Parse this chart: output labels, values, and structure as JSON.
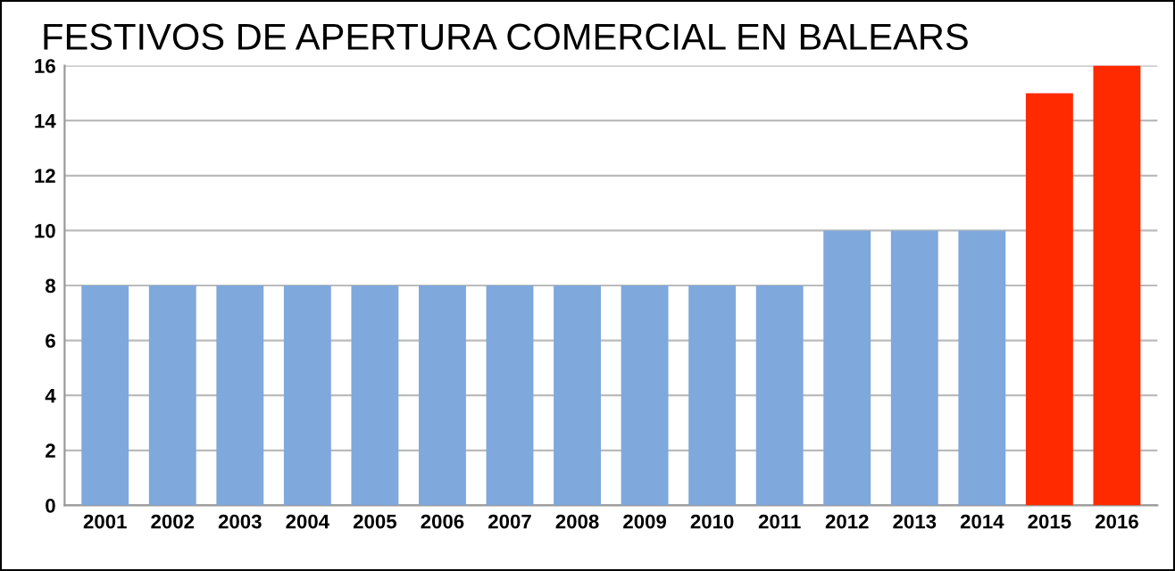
{
  "chart_data": {
    "type": "bar",
    "title": "FESTIVOS DE APERTURA COMERCIAL EN BALEARS",
    "categories": [
      "2001",
      "2002",
      "2003",
      "2004",
      "2005",
      "2006",
      "2007",
      "2008",
      "2009",
      "2010",
      "2011",
      "2012",
      "2013",
      "2014",
      "2015",
      "2016"
    ],
    "values": [
      8,
      8,
      8,
      8,
      8,
      8,
      8,
      8,
      8,
      8,
      8,
      10,
      10,
      10,
      15,
      16
    ],
    "colors": [
      "#7fa8dc",
      "#7fa8dc",
      "#7fa8dc",
      "#7fa8dc",
      "#7fa8dc",
      "#7fa8dc",
      "#7fa8dc",
      "#7fa8dc",
      "#7fa8dc",
      "#7fa8dc",
      "#7fa8dc",
      "#7fa8dc",
      "#7fa8dc",
      "#7fa8dc",
      "#ff2a00",
      "#ff2a00"
    ],
    "ylim": [
      0,
      16
    ],
    "yticks": [
      0,
      2,
      4,
      6,
      8,
      10,
      12,
      14,
      16
    ],
    "grid": "y"
  }
}
